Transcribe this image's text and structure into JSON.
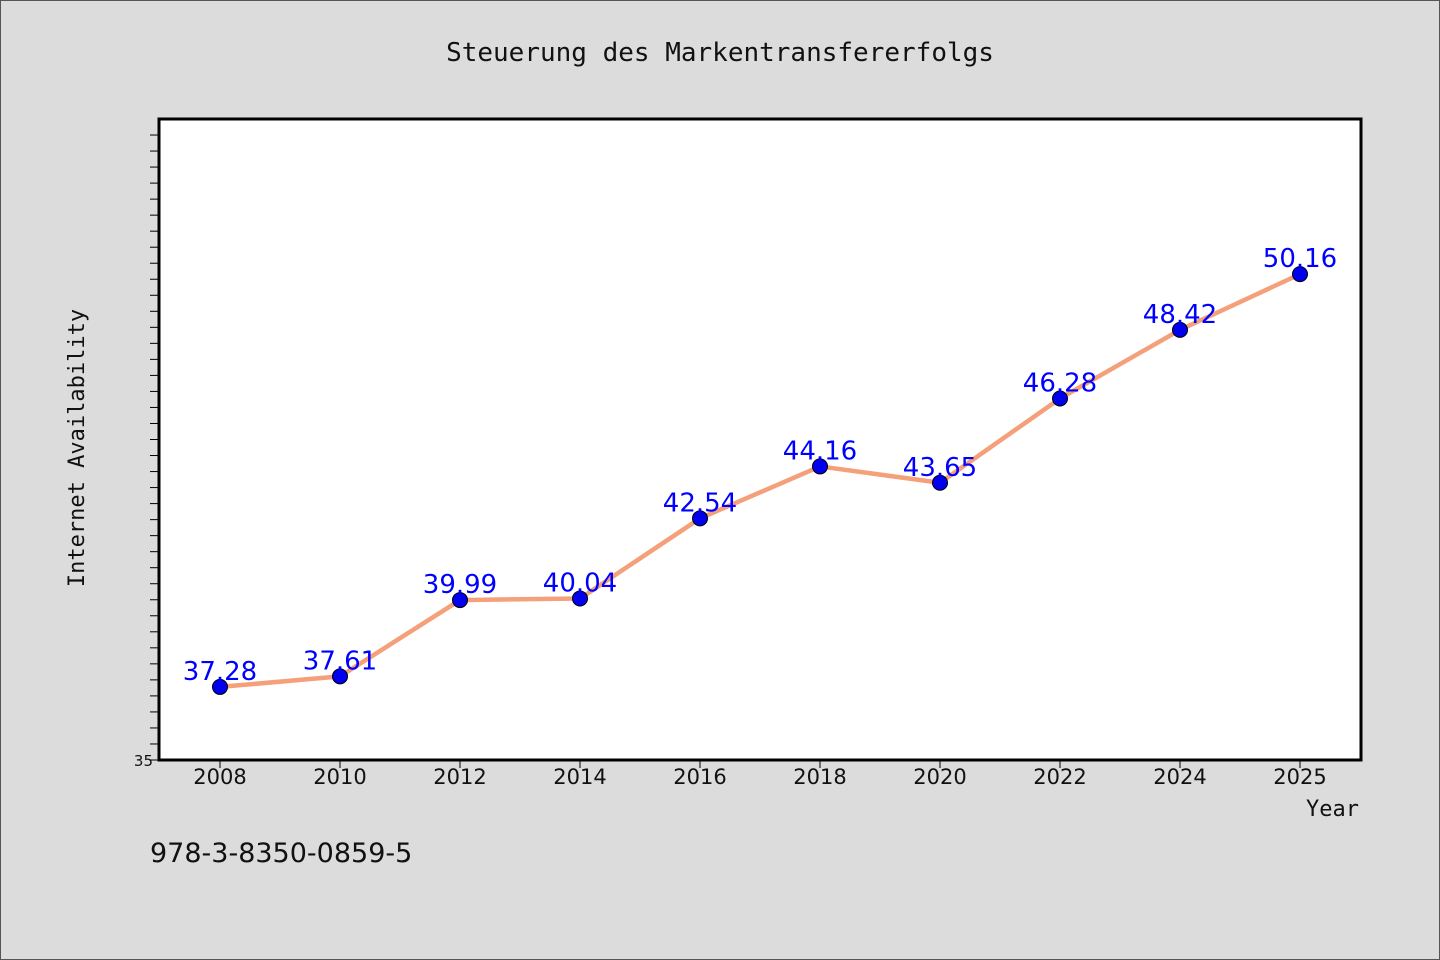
{
  "chart_data": {
    "type": "line",
    "title": "Steuerung des Markentransfererfolgs",
    "xlabel": "Year",
    "ylabel": "Internet Availability",
    "x": [
      "2008",
      "2010",
      "2012",
      "2014",
      "2016",
      "2018",
      "2020",
      "2022",
      "2024",
      "2025"
    ],
    "values": [
      37.28,
      37.61,
      39.99,
      40.04,
      42.54,
      44.16,
      43.65,
      46.28,
      48.42,
      50.16
    ],
    "data_labels": [
      "37.28",
      "37.61",
      "39.99",
      "40.04",
      "42.54",
      "44.16",
      "43.65",
      "46.28",
      "48.42",
      "50.16"
    ],
    "ylim": [
      35,
      55
    ],
    "y_tick_labels": [
      "35"
    ],
    "grid": false,
    "line_color": "#f4a07a",
    "marker_color": "#0000ee",
    "label_color": "#0000ff"
  },
  "footer_text": "978-3-8350-0859-5"
}
